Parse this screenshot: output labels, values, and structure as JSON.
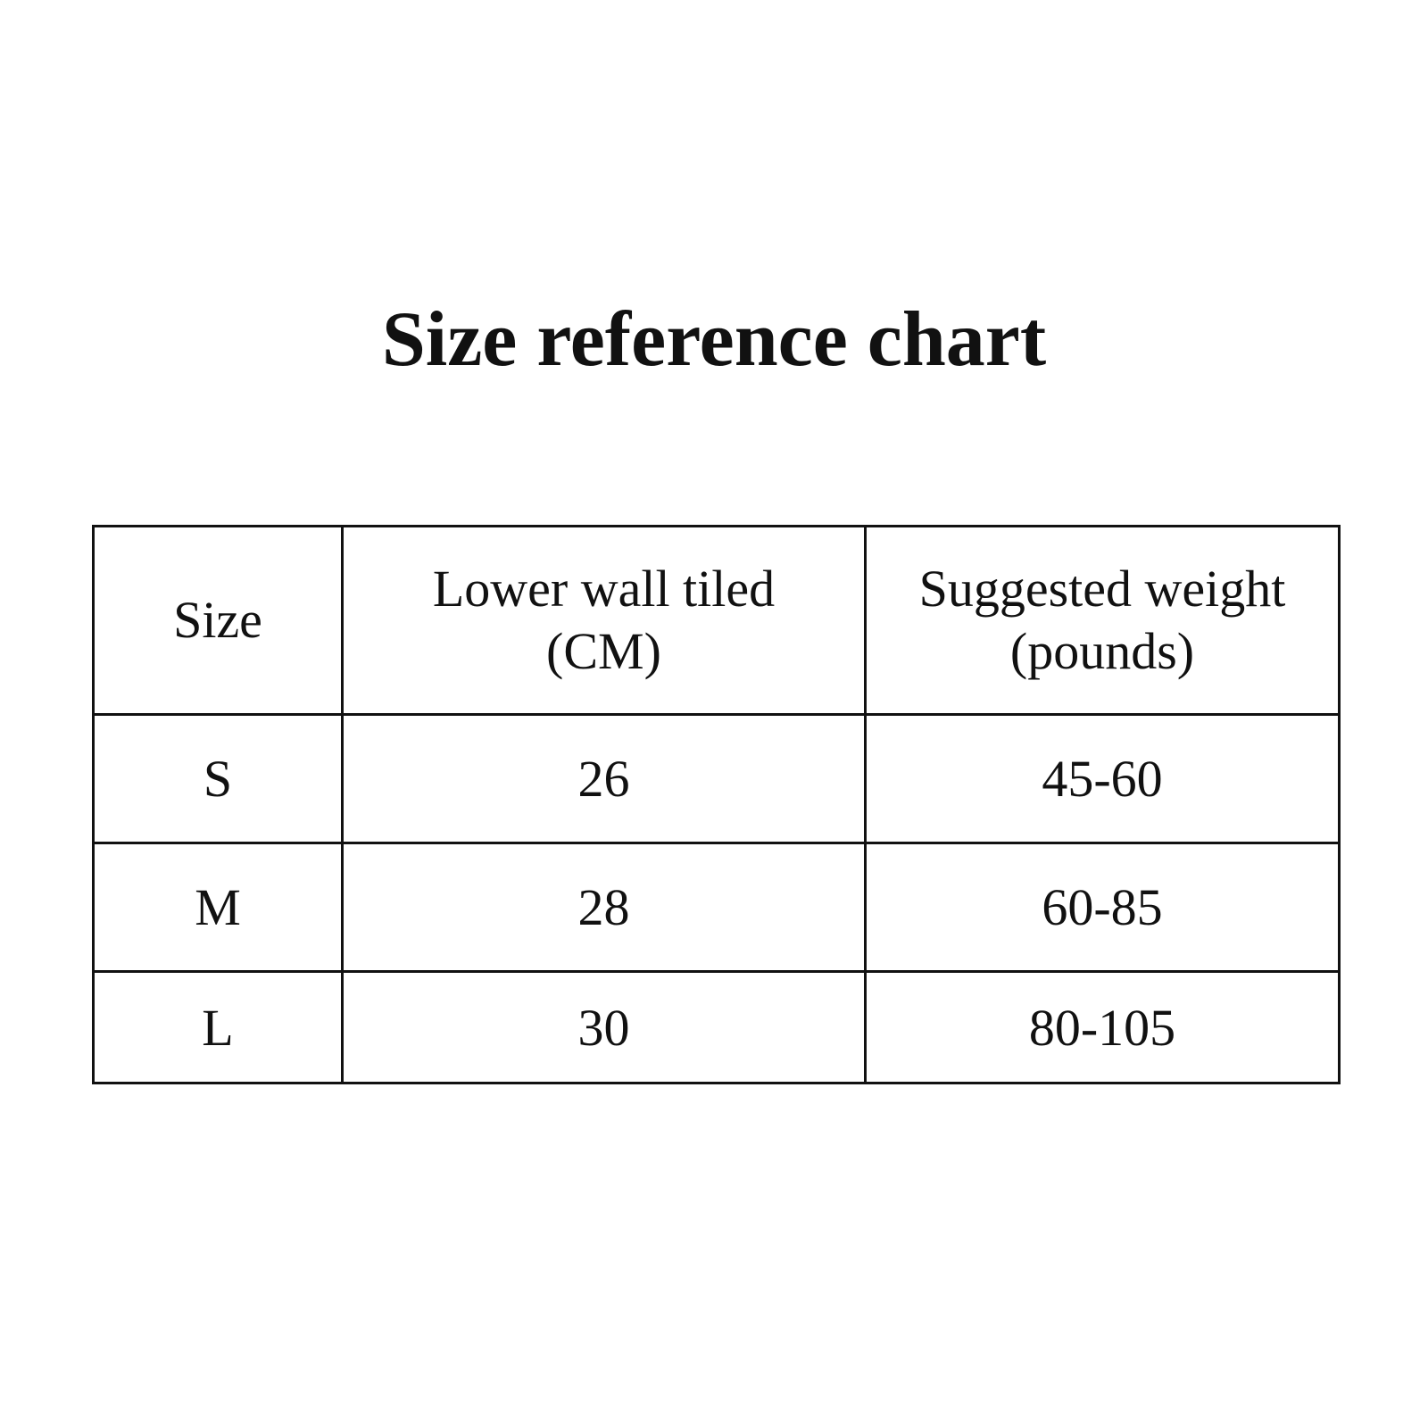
{
  "title": "Size reference chart",
  "table": {
    "headers": [
      "Size",
      "Lower wall tiled (CM)",
      "Suggested weight (pounds)"
    ],
    "rows": [
      [
        "S",
        "26",
        "45-60"
      ],
      [
        "M",
        "28",
        "60-85"
      ],
      [
        "L",
        "30",
        "80-105"
      ]
    ]
  }
}
